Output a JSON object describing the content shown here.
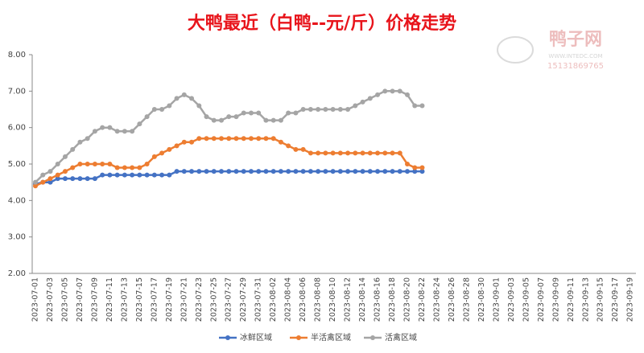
{
  "chart_data": {
    "type": "line",
    "title": "大鸭最近（白鸭--元/斤）价格走势",
    "watermark": {
      "name": "鸭子网",
      "url": "WWW.INTEDC.COM",
      "phone": "15131869765"
    },
    "categories": [
      "2023-07-01",
      null,
      "2023-07-03",
      null,
      "2023-07-05",
      null,
      "2023-07-07",
      null,
      "2023-07-09",
      null,
      "2023-07-11",
      null,
      "2023-07-13",
      null,
      "2023-07-15",
      null,
      "2023-07-17",
      null,
      "2023-07-19",
      null,
      "2023-07-21",
      null,
      "2023-07-23",
      null,
      "2023-07-25",
      null,
      "2023-07-27",
      null,
      "2023-07-29",
      null,
      "2023-07-31",
      null,
      "2023-08-02",
      null,
      "2023-08-04",
      null,
      "2023-08-06",
      null,
      "2023-08-08",
      null,
      "2023-08-10",
      null,
      "2023-08-12",
      null,
      "2023-08-14",
      null,
      "2023-08-16",
      null,
      "2023-08-18",
      null,
      "2023-08-20",
      null,
      "2023-08-22",
      null,
      "2023-08-24",
      null,
      "2023-08-26",
      null,
      "2023-08-28",
      null,
      "2023-08-30",
      null,
      "2023-09-01",
      null,
      "2023-09-03",
      null,
      "2023-09-05",
      null,
      "2023-09-07",
      null,
      "2023-09-09",
      null,
      "2023-09-11",
      null,
      "2023-09-13",
      null,
      "2023-09-15",
      null,
      "2023-09-17",
      null,
      "2023-09-19"
    ],
    "series": [
      {
        "name": "冰鲜区域",
        "color": "#4472c4",
        "values": [
          4.45,
          4.5,
          4.5,
          4.6,
          4.6,
          4.6,
          4.6,
          4.6,
          4.6,
          4.7,
          4.7,
          4.7,
          4.7,
          4.7,
          4.7,
          4.7,
          4.7,
          4.7,
          4.7,
          4.8,
          4.8,
          4.8,
          4.8,
          4.8,
          4.8,
          4.8,
          4.8,
          4.8,
          4.8,
          4.8,
          4.8,
          4.8,
          4.8,
          4.8,
          4.8,
          4.8,
          4.8,
          4.8,
          4.8,
          4.8,
          4.8,
          4.8,
          4.8,
          4.8,
          4.8,
          4.8,
          4.8,
          4.8,
          4.8,
          4.8,
          4.8,
          4.8,
          4.8,
          null,
          null,
          null,
          null,
          null,
          null,
          null,
          null,
          null,
          null,
          null,
          null,
          null,
          null,
          null,
          null,
          null,
          null,
          null,
          null,
          null,
          null,
          null,
          null,
          null,
          null,
          null,
          null
        ]
      },
      {
        "name": "半活禽区域",
        "color": "#ed7d31",
        "values": [
          4.4,
          4.5,
          4.6,
          4.7,
          4.8,
          4.9,
          5.0,
          5.0,
          5.0,
          5.0,
          5.0,
          4.9,
          4.9,
          4.9,
          4.9,
          5.0,
          5.2,
          5.3,
          5.4,
          5.5,
          5.6,
          5.6,
          5.7,
          5.7,
          5.7,
          5.7,
          5.7,
          5.7,
          5.7,
          5.7,
          5.7,
          5.7,
          5.7,
          5.6,
          5.5,
          5.4,
          5.4,
          5.3,
          5.3,
          5.3,
          5.3,
          5.3,
          5.3,
          5.3,
          5.3,
          5.3,
          5.3,
          5.3,
          5.3,
          5.3,
          5.0,
          4.9,
          4.9,
          null,
          null,
          null,
          null,
          null,
          null,
          null,
          null,
          null,
          null,
          null,
          null,
          null,
          null,
          null,
          null,
          null,
          null,
          null,
          null,
          null,
          null,
          null,
          null,
          null,
          null,
          null,
          null
        ]
      },
      {
        "name": "活禽区域",
        "color": "#a5a5a5",
        "values": [
          4.5,
          4.7,
          4.8,
          5.0,
          5.2,
          5.4,
          5.6,
          5.7,
          5.9,
          6.0,
          6.0,
          5.9,
          5.9,
          5.9,
          6.1,
          6.3,
          6.5,
          6.5,
          6.6,
          6.8,
          6.9,
          6.8,
          6.6,
          6.3,
          6.2,
          6.2,
          6.3,
          6.3,
          6.4,
          6.4,
          6.4,
          6.2,
          6.2,
          6.2,
          6.4,
          6.4,
          6.5,
          6.5,
          6.5,
          6.5,
          6.5,
          6.5,
          6.5,
          6.6,
          6.7,
          6.8,
          6.9,
          7.0,
          7.0,
          7.0,
          6.9,
          6.6,
          6.6,
          null,
          null,
          null,
          null,
          null,
          null,
          null,
          null,
          null,
          null,
          null,
          null,
          null,
          null,
          null,
          null,
          null,
          null,
          null,
          null,
          null,
          null,
          null,
          null,
          null,
          null,
          null,
          null
        ]
      }
    ],
    "ylim": [
      2,
      8
    ],
    "yticks": [
      {
        "value": 2,
        "label": "2.00"
      },
      {
        "value": 3,
        "label": "3.00"
      },
      {
        "value": 4,
        "label": "4.00"
      },
      {
        "value": 5,
        "label": "5.00"
      },
      {
        "value": 6,
        "label": "6.00"
      },
      {
        "value": 7,
        "label": "7.00"
      },
      {
        "value": 8,
        "label": "8.00"
      }
    ],
    "grid": false,
    "legend": "bottom"
  }
}
